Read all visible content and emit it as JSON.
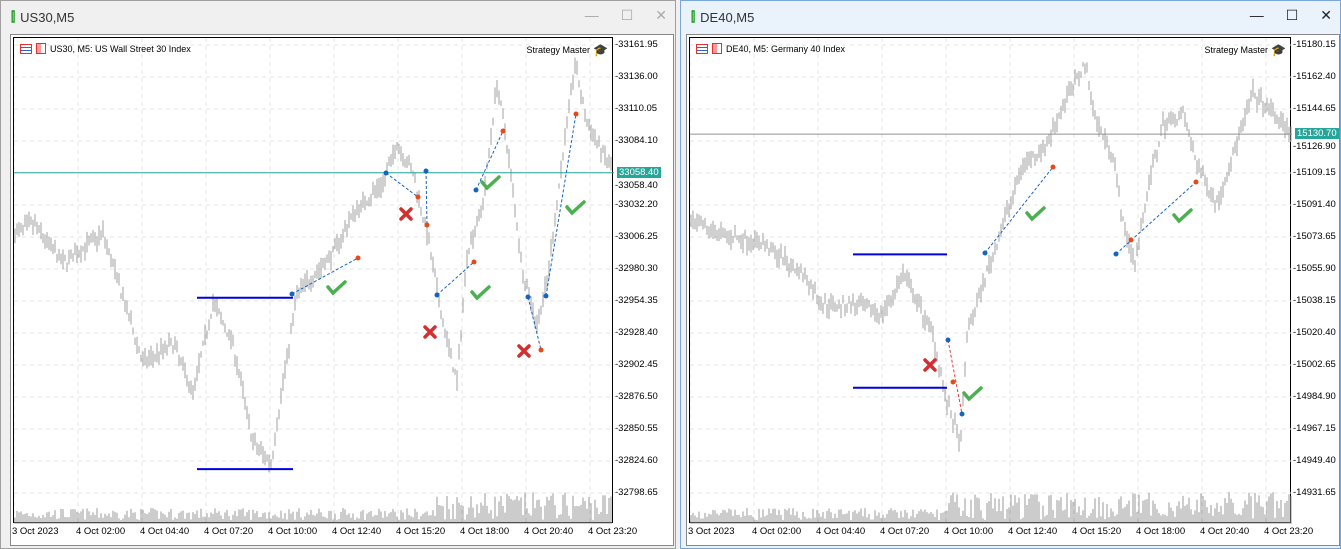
{
  "windows": [
    {
      "title": "US30,M5",
      "legend": "US30, M5:  US Wall Street 30 Index",
      "indicator": "Strategy Master"
    },
    {
      "title": "DE40,M5",
      "legend": "DE40, M5:  Germany 40 Index",
      "indicator": "Strategy Master"
    }
  ],
  "window_controls": {
    "minimize": "—",
    "maximize": "☐",
    "close": "✕"
  },
  "chart_data": [
    {
      "type": "bar",
      "symbol": "US30",
      "timeframe": "M5",
      "price_ticks": [
        "33161.95",
        "33136.00",
        "33110.05",
        "33084.10",
        "33058.40",
        "33032.20",
        "33006.25",
        "32980.30",
        "32954.35",
        "32928.40",
        "32902.45",
        "32876.50",
        "32850.55",
        "32824.60",
        "32798.65"
      ],
      "current_price": "33058.40",
      "ylim": [
        32798.65,
        33161.95
      ],
      "time_labels": [
        "3 Oct 2023",
        "4 Oct 02:00",
        "4 Oct 04:40",
        "4 Oct 07:20",
        "4 Oct 10:00",
        "4 Oct 12:40",
        "4 Oct 15:20",
        "4 Oct 18:00",
        "4 Oct 20:40",
        "4 Oct 23:20"
      ],
      "price_path": [
        [
          0,
          33009
        ],
        [
          9,
          33017
        ],
        [
          24,
          32985
        ],
        [
          44,
          33009
        ],
        [
          64,
          32904
        ],
        [
          79,
          32920
        ],
        [
          89,
          32880
        ],
        [
          99,
          32953
        ],
        [
          109,
          32920
        ],
        [
          119,
          32839
        ],
        [
          128,
          32823
        ],
        [
          134,
          32888
        ],
        [
          141,
          32960
        ],
        [
          159,
          32993
        ],
        [
          169,
          33025
        ],
        [
          184,
          33050
        ],
        [
          191,
          33082
        ],
        [
          199,
          33058
        ],
        [
          206,
          33009
        ],
        [
          214,
          32936
        ],
        [
          221,
          32888
        ],
        [
          226,
          32993
        ],
        [
          234,
          33034
        ],
        [
          241,
          33131
        ],
        [
          246,
          33082
        ],
        [
          254,
          32977
        ],
        [
          261,
          32936
        ],
        [
          266,
          32969
        ],
        [
          274,
          33074
        ],
        [
          280,
          33147
        ],
        [
          286,
          33098
        ],
        [
          298,
          33062
        ]
      ],
      "levels": [
        {
          "price": 32957,
          "from": 91,
          "to": 139
        },
        {
          "price": 32818,
          "from": 91,
          "to": 139
        }
      ],
      "colors": {
        "bars": "#a0a0a0",
        "current": "#26a69a",
        "level": "#0000e0"
      }
    },
    {
      "type": "bar",
      "symbol": "DE40",
      "timeframe": "M5",
      "price_ticks": [
        "15180.15",
        "15162.40",
        "15144.65",
        "15126.90",
        "15109.15",
        "15091.40",
        "15073.65",
        "15055.90",
        "15038.15",
        "15020.40",
        "15002.65",
        "14984.90",
        "14967.15",
        "14949.40",
        "14931.65"
      ],
      "current_price": "15130.70",
      "ylim": [
        14931.65,
        15180.15
      ],
      "time_labels": [
        "3 Oct 2023",
        "4 Oct 02:00",
        "4 Oct 04:40",
        "4 Oct 07:20",
        "4 Oct 10:00",
        "4 Oct 12:40",
        "4 Oct 15:20",
        "4 Oct 18:00",
        "4 Oct 20:40",
        "4 Oct 23:20"
      ],
      "price_path": [
        [
          0,
          15081
        ],
        [
          16,
          15075
        ],
        [
          36,
          15070
        ],
        [
          56,
          15053
        ],
        [
          66,
          15036
        ],
        [
          81,
          15036
        ],
        [
          96,
          15031
        ],
        [
          106,
          15053
        ],
        [
          121,
          15020
        ],
        [
          128,
          14981
        ],
        [
          135,
          14959
        ],
        [
          138,
          15020
        ],
        [
          151,
          15064
        ],
        [
          166,
          15114
        ],
        [
          178,
          15125
        ],
        [
          186,
          15147
        ],
        [
          197,
          15170
        ],
        [
          203,
          15136
        ],
        [
          211,
          15120
        ],
        [
          216,
          15081
        ],
        [
          222,
          15059
        ],
        [
          228,
          15098
        ],
        [
          236,
          15136
        ],
        [
          246,
          15142
        ],
        [
          253,
          15114
        ],
        [
          263,
          15092
        ],
        [
          276,
          15136
        ],
        [
          281,
          15153
        ],
        [
          291,
          15142
        ],
        [
          300,
          15132
        ]
      ],
      "levels": [
        {
          "price": 15064,
          "from": 81,
          "to": 128
        },
        {
          "price": 14990,
          "from": 81,
          "to": 128
        }
      ],
      "colors": {
        "bars": "#a0a0a0",
        "current": "#26a69a",
        "level": "#0000e0"
      }
    }
  ]
}
